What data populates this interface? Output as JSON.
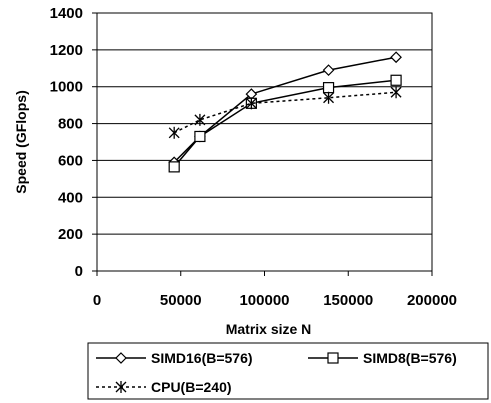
{
  "chart_data": {
    "type": "line",
    "xlabel": "Matrix size N",
    "ylabel": "Speed (GFlops)",
    "xlim": [
      0,
      200000
    ],
    "ylim": [
      0,
      1400
    ],
    "x_ticks": [
      "0",
      "50000",
      "100000",
      "150000",
      "200000"
    ],
    "y_ticks": [
      "0",
      "200",
      "400",
      "600",
      "800",
      "1000",
      "1200",
      "1400"
    ],
    "grid": "horizontal",
    "legend_position": "bottom",
    "series": [
      {
        "name": "SIMD16(B=576)",
        "marker": "diamond",
        "line_style": "solid",
        "x": [
          46080,
          61440,
          92160,
          138240,
          178560
        ],
        "y": [
          590,
          730,
          960,
          1090,
          1160
        ]
      },
      {
        "name": "SIMD8(B=576)",
        "marker": "square",
        "line_style": "solid",
        "x": [
          46080,
          61440,
          92160,
          138240,
          178560
        ],
        "y": [
          565,
          730,
          910,
          995,
          1035
        ]
      },
      {
        "name": "CPU(B=240)",
        "marker": "asterisk",
        "line_style": "dotted",
        "x": [
          46080,
          61440,
          92160,
          138240,
          178560
        ],
        "y": [
          750,
          820,
          910,
          940,
          970
        ]
      }
    ]
  }
}
